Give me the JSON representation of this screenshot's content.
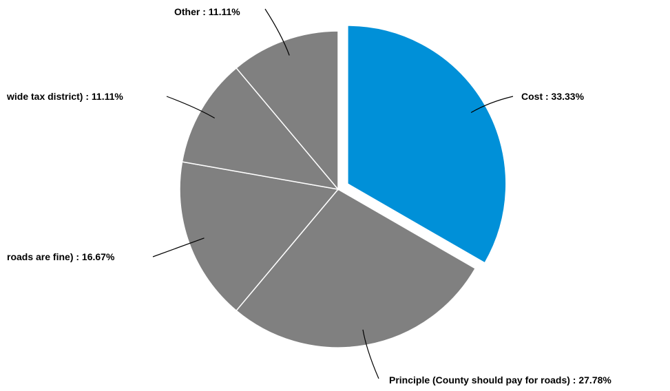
{
  "chart_data": {
    "type": "pie",
    "title": "",
    "start_angle_deg": 0,
    "direction": "clockwise",
    "exploded": [
      "Cost"
    ],
    "slices": [
      {
        "label": "Cost",
        "value": 33.33,
        "display": "Cost : 33.33%",
        "color": "#0090D8"
      },
      {
        "label": "Principle (County should pay for roads)",
        "value": 27.78,
        "display": "Principle (County should pay for roads) : 27.78%",
        "color": "#808080"
      },
      {
        "label": "roads are fine)",
        "value": 16.67,
        "display": "roads are fine) : 16.67%",
        "color": "#808080"
      },
      {
        "label": "wide tax district)",
        "value": 11.11,
        "display": "wide tax district) : 11.11%",
        "color": "#808080"
      },
      {
        "label": "Other",
        "value": 11.11,
        "display": "Other : 11.11%",
        "color": "#808080"
      }
    ]
  }
}
